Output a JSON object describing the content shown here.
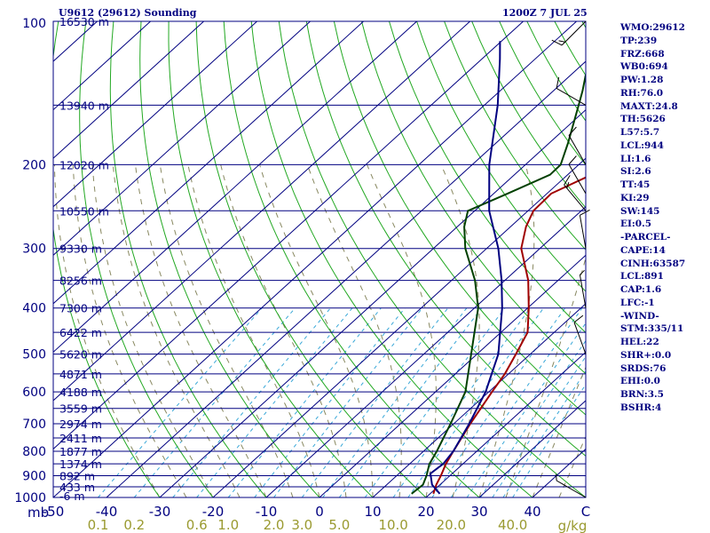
{
  "header": {
    "left": "U9612 (29612) Sounding",
    "right": "1200Z  7 JUL 25"
  },
  "indices": [
    "WMO:29612",
    "TP:239",
    "FRZ:668",
    "WB0:694",
    "PW:1.28",
    "RH:76.0",
    "MAXT:24.8",
    "TH:5626",
    "L57:5.7",
    "LCL:944",
    "LI:1.6",
    "SI:2.6",
    "TT:45",
    "KI:29",
    "SW:145",
    "EI:0.5",
    "-PARCEL-",
    "CAPE:14",
    "CINH:63587",
    "LCL:891",
    "CAP:1.6",
    "LFC:-1",
    "-WIND-",
    "STM:335/11",
    "HEL:22",
    "SHR+:0.0",
    "SRDS:76",
    "EHI:0.0",
    "BRN:3.5",
    "BSHR:4"
  ],
  "chart_data": {
    "type": "line",
    "title": "U9612 (29612) Sounding",
    "subtitle": "1200Z  7 JUL 25",
    "diagram": "skew-T log-p",
    "p_range": [
      1000,
      100
    ],
    "t_range": [
      -50,
      50
    ],
    "p_unit_label": "mb",
    "mixing_unit_label": "g/kg",
    "pressure_ticks": [
      {
        "p": 100,
        "label": "100"
      },
      {
        "p": 200,
        "label": "200"
      },
      {
        "p": 300,
        "label": "300"
      },
      {
        "p": 400,
        "label": "400"
      },
      {
        "p": 500,
        "label": "500"
      },
      {
        "p": 600,
        "label": "600"
      },
      {
        "p": 700,
        "label": "700"
      },
      {
        "p": 800,
        "label": "800"
      },
      {
        "p": 900,
        "label": "900"
      },
      {
        "p": 1000,
        "label": "1000"
      }
    ],
    "height_levels": [
      {
        "p": 100,
        "label": "16530 m"
      },
      {
        "p": 150,
        "label": "13940 m"
      },
      {
        "p": 200,
        "label": "12020 m"
      },
      {
        "p": 250,
        "label": "10550 m"
      },
      {
        "p": 300,
        "label": "9330 m"
      },
      {
        "p": 350,
        "label": "8256 m"
      },
      {
        "p": 400,
        "label": "7300 m"
      },
      {
        "p": 450,
        "label": "6422 m"
      },
      {
        "p": 500,
        "label": "5620 m"
      },
      {
        "p": 550,
        "label": "4871 m"
      },
      {
        "p": 600,
        "label": "4188 m"
      },
      {
        "p": 650,
        "label": "3559 m"
      },
      {
        "p": 700,
        "label": "2974 m"
      },
      {
        "p": 750,
        "label": "2411 m"
      },
      {
        "p": 800,
        "label": "1877 m"
      },
      {
        "p": 850,
        "label": "1374 m"
      },
      {
        "p": 900,
        "label": "892 m"
      },
      {
        "p": 950,
        "label": "433 m"
      },
      {
        "p": 1000,
        "label": "-6 m"
      }
    ],
    "temperature_ticks": [
      {
        "t": -50,
        "label": "-50"
      },
      {
        "t": -40,
        "label": "-40"
      },
      {
        "t": -30,
        "label": "-30"
      },
      {
        "t": -20,
        "label": "-20"
      },
      {
        "t": -10,
        "label": "-10"
      },
      {
        "t": 0,
        "label": "0"
      },
      {
        "t": 10,
        "label": "10"
      },
      {
        "t": 20,
        "label": "20"
      },
      {
        "t": 30,
        "label": "30"
      },
      {
        "t": 40,
        "label": "40"
      },
      {
        "t": 50,
        "label": "C"
      }
    ],
    "mixing_ratio_ticks": [
      {
        "w": 0.1,
        "label": "0.1"
      },
      {
        "w": 0.2,
        "label": "0.2"
      },
      {
        "w": 0.6,
        "label": "0.6"
      },
      {
        "w": 1.0,
        "label": "1.0"
      },
      {
        "w": 2.0,
        "label": "2.0"
      },
      {
        "w": 3.0,
        "label": "3.0"
      },
      {
        "w": 5.0,
        "label": "5.0"
      },
      {
        "w": 10.0,
        "label": "10.0"
      },
      {
        "w": 20.0,
        "label": "20.0"
      },
      {
        "w": 40.0,
        "label": "40.0"
      }
    ],
    "series": [
      {
        "kind": "temperature",
        "color": "#a00000",
        "points": [
          [
            982,
            20.6
          ],
          [
            940,
            19.3
          ],
          [
            900,
            18.3
          ],
          [
            850,
            16.8
          ],
          [
            800,
            15.6
          ],
          [
            700,
            13.1
          ],
          [
            600,
            10.6
          ],
          [
            550,
            9.3
          ],
          [
            500,
            7.3
          ],
          [
            450,
            5.0
          ],
          [
            400,
            0.2
          ],
          [
            350,
            -5.6
          ],
          [
            300,
            -13.5
          ],
          [
            270,
            -17.1
          ],
          [
            250,
            -19.0
          ],
          [
            230,
            -19.2
          ],
          [
            220,
            -17.4
          ],
          [
            200,
            -13.5
          ],
          [
            180,
            -11.1
          ],
          [
            150,
            -10.2
          ],
          [
            140,
            -11.2
          ],
          [
            130,
            -13.6
          ],
          [
            120,
            -15.4
          ],
          [
            110,
            -16.8
          ],
          [
            100,
            -15.4
          ]
        ]
      },
      {
        "kind": "dewpoint",
        "color": "#004000",
        "points": [
          [
            982,
            16.5
          ],
          [
            940,
            16.8
          ],
          [
            900,
            15.6
          ],
          [
            850,
            13.7
          ],
          [
            800,
            12.5
          ],
          [
            700,
            9.4
          ],
          [
            600,
            5.6
          ],
          [
            500,
            -1.1
          ],
          [
            400,
            -9.3
          ],
          [
            350,
            -15.6
          ],
          [
            300,
            -24.0
          ],
          [
            270,
            -28.7
          ],
          [
            250,
            -31.3
          ],
          [
            230,
            -27.4
          ],
          [
            210,
            -23.3
          ],
          [
            200,
            -23.4
          ],
          [
            180,
            -26.5
          ],
          [
            150,
            -32.3
          ],
          [
            140,
            -34.5
          ],
          [
            130,
            -37.1
          ],
          [
            120,
            -38.4
          ],
          [
            110,
            -37.2
          ],
          [
            100,
            -38.4
          ]
        ]
      },
      {
        "kind": "parcel",
        "color": "#000080",
        "points": [
          [
            982,
            21.8
          ],
          [
            940,
            18.5
          ],
          [
            891,
            15.9
          ],
          [
            850,
            16.3
          ],
          [
            800,
            15.6
          ],
          [
            700,
            12.9
          ],
          [
            600,
            9.4
          ],
          [
            500,
            4.0
          ],
          [
            400,
            -4.8
          ],
          [
            350,
            -10.6
          ],
          [
            300,
            -17.8
          ],
          [
            250,
            -27.3
          ],
          [
            200,
            -36.8
          ],
          [
            150,
            -47.5
          ],
          [
            120,
            -56.6
          ],
          [
            110,
            -60.3
          ]
        ]
      }
    ],
    "wind_barbs": [
      {
        "p": 100,
        "dir": 225,
        "speed_kt": 15
      },
      {
        "p": 150,
        "dir": 300,
        "speed_kt": 10
      },
      {
        "p": 200,
        "dir": 330,
        "speed_kt": 10
      },
      {
        "p": 230,
        "dir": 330,
        "speed_kt": 10
      },
      {
        "p": 250,
        "dir": 320,
        "speed_kt": 15
      },
      {
        "p": 300,
        "dir": 350,
        "speed_kt": 10
      },
      {
        "p": 400,
        "dir": 350,
        "speed_kt": 5
      },
      {
        "p": 500,
        "dir": 340,
        "speed_kt": 10
      },
      {
        "p": 1000,
        "dir": 300,
        "speed_kt": 5
      }
    ]
  }
}
